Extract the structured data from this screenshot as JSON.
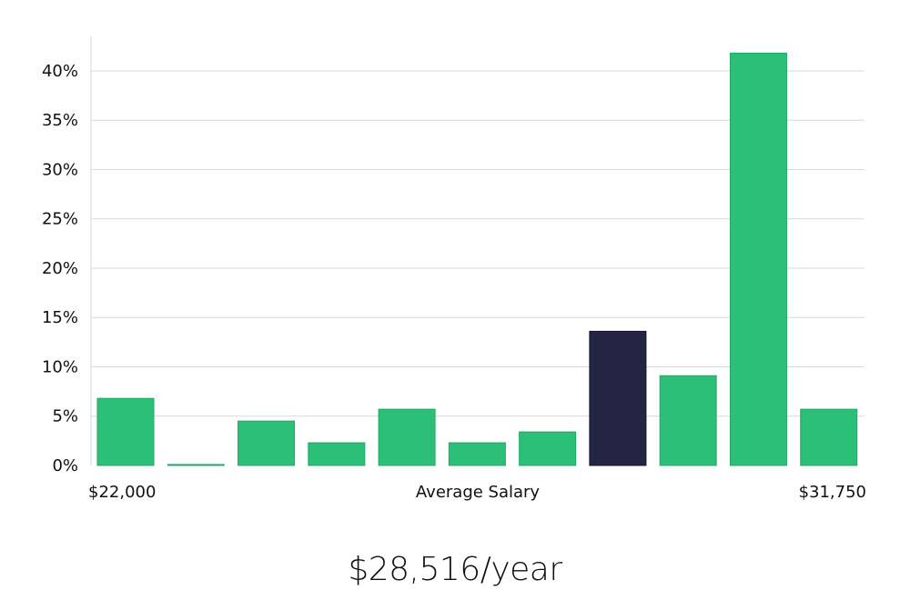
{
  "chart_data": {
    "type": "bar",
    "ylim": [
      0,
      43.5
    ],
    "y_ticks": [
      0,
      5,
      10,
      15,
      20,
      25,
      30,
      35,
      40
    ],
    "y_tick_suffix": "%",
    "grid": true,
    "values": [
      6.8,
      0.1,
      4.5,
      2.3,
      5.7,
      2.3,
      3.4,
      13.6,
      9.1,
      41.8,
      5.7
    ],
    "highlight_index": 7,
    "xlabel": "Average Salary",
    "x_min_label": "$22,000",
    "x_max_label": "$31,750"
  },
  "summary": {
    "salary": "$28,516/year"
  },
  "colors": {
    "bar": "#2bbf77",
    "bar_border": "#22a866",
    "highlight": "#262444",
    "highlight_border": "#141230",
    "grid": "#d9d9d9",
    "text": "#111111"
  }
}
